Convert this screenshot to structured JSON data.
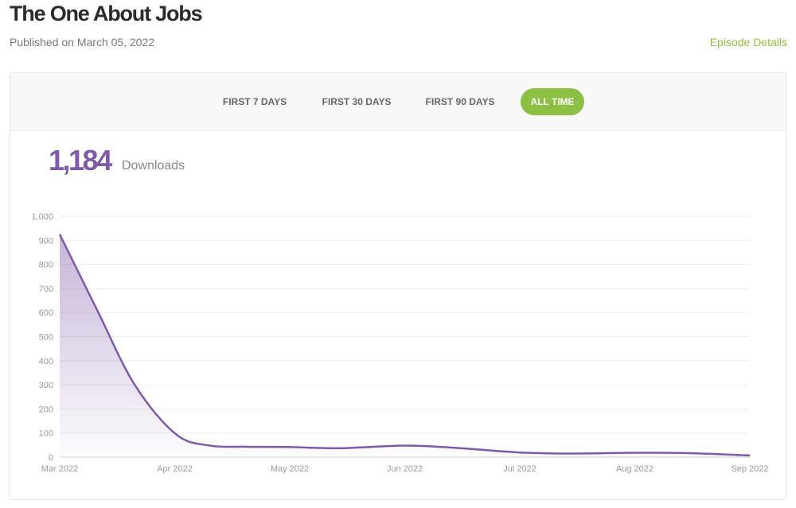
{
  "header": {
    "title": "The One About Jobs",
    "published": "Published on March 05, 2022",
    "episode_details_label": "Episode Details"
  },
  "tabs": [
    {
      "label": "FIRST 7 DAYS",
      "active": false
    },
    {
      "label": "FIRST 30 DAYS",
      "active": false
    },
    {
      "label": "FIRST 90 DAYS",
      "active": false
    },
    {
      "label": "ALL TIME",
      "active": true
    }
  ],
  "summary": {
    "count": "1,184",
    "label": "Downloads"
  },
  "colors": {
    "accent": "#8cc043",
    "link": "#8fbf3f",
    "series": "#7f5aa8"
  },
  "chart_data": {
    "type": "area",
    "x": [
      "2022-03-01",
      "2022-03-11",
      "2022-03-21",
      "2022-04-01",
      "2022-04-10",
      "2022-04-20",
      "2022-05-01",
      "2022-05-15",
      "2022-06-01",
      "2022-06-15",
      "2022-07-01",
      "2022-07-15",
      "2022-08-01",
      "2022-08-15",
      "2022-09-01"
    ],
    "values": [
      925,
      610,
      300,
      95,
      48,
      43,
      42,
      37,
      48,
      38,
      20,
      15,
      18,
      17,
      7
    ],
    "x_tick_labels": [
      "Mar 2022",
      "Apr 2022",
      "May 2022",
      "Jun 2022",
      "Jul 2022",
      "Aug 2022",
      "Sep 2022"
    ],
    "y_tick_labels": [
      "0",
      "100",
      "200",
      "300",
      "400",
      "500",
      "600",
      "700",
      "800",
      "900",
      "1,000"
    ],
    "ylim": [
      0,
      1000
    ],
    "xlim": [
      "2022-03-01",
      "2022-09-01"
    ],
    "grid": true,
    "legend": false
  }
}
